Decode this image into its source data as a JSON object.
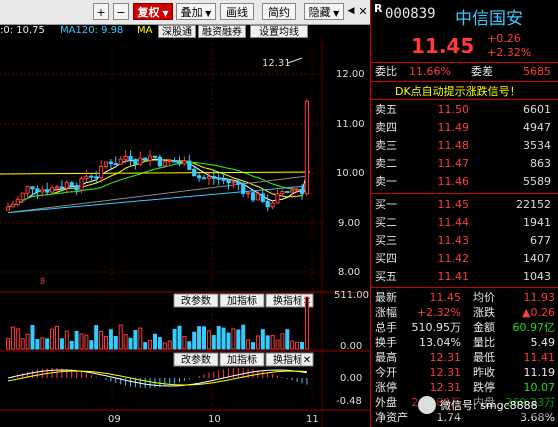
{
  "toolbar": {
    "plus": "+",
    "minus": "−",
    "fuquan": "复权",
    "diejia": "叠加",
    "huaxian": "画线",
    "jianyue": "简约",
    "yincang": "隐藏",
    "prev": "◀",
    "next": "▶",
    "close": "✕"
  },
  "ma": {
    "first": ":0: 10.75",
    "ma120": "MA120: 9.98",
    "ma_cut": "MA",
    "sgt": "深股通",
    "rzrq": "融资融券",
    "sxjx": "设置均线"
  },
  "chart": {
    "yticks": [
      "12.00",
      "11.00",
      "10.00",
      "9.00",
      "8.00"
    ],
    "high_label": "12.31",
    "low_marker": "8",
    "vol_buttons": [
      "改参数",
      "加指标",
      "换指标"
    ],
    "vol_ticks": [
      "511.00",
      "0.00"
    ],
    "macd_buttons": [
      "改参数",
      "加指标",
      "换指标"
    ],
    "macd_ticks": [
      "0.00",
      "-0.48"
    ],
    "months": [
      "09",
      "10",
      "11"
    ]
  },
  "quote": {
    "r_mark": "R",
    "code": "000839",
    "name": "中信国安",
    "price": "11.45",
    "change": "+0.26",
    "pct": "+2.32%",
    "weibi_lbl": "委比",
    "weibi": "11.66%",
    "weicha_lbl": "委差",
    "weicha": "5685",
    "signal": "DK点自动提示涨跌信号！",
    "sells": [
      {
        "label": "卖五",
        "price": "11.50",
        "vol": "6601"
      },
      {
        "label": "卖四",
        "price": "11.49",
        "vol": "4947"
      },
      {
        "label": "卖三",
        "price": "11.48",
        "vol": "3534"
      },
      {
        "label": "卖二",
        "price": "11.47",
        "vol": "863"
      },
      {
        "label": "卖一",
        "price": "11.46",
        "vol": "5589"
      }
    ],
    "buys": [
      {
        "label": "买一",
        "price": "11.45",
        "vol": "22152"
      },
      {
        "label": "买二",
        "price": "11.44",
        "vol": "1941"
      },
      {
        "label": "买三",
        "price": "11.43",
        "vol": "677"
      },
      {
        "label": "买四",
        "price": "11.42",
        "vol": "1407"
      },
      {
        "label": "买五",
        "price": "11.41",
        "vol": "1043"
      }
    ],
    "stats": [
      {
        "l1": "最新",
        "v1": "11.45",
        "c1": "red",
        "l2": "均价",
        "v2": "11.93",
        "c2": "red"
      },
      {
        "l1": "涨幅",
        "v1": "+2.32%",
        "c1": "red",
        "l2": "涨跌",
        "v2": "▲0.26",
        "c2": "red"
      },
      {
        "l1": "总手",
        "v1": "510.95万",
        "c1": "wht",
        "l2": "金额",
        "v2": "60.97亿",
        "c2": "grn"
      },
      {
        "l1": "换手",
        "v1": "13.04%",
        "c1": "wht",
        "l2": "量比",
        "v2": "5.49",
        "c2": "wht"
      },
      {
        "l1": "最高",
        "v1": "12.31",
        "c1": "red",
        "l2": "最低",
        "v2": "11.41",
        "c2": "red"
      },
      {
        "l1": "今开",
        "v1": "12.31",
        "c1": "red",
        "l2": "昨收",
        "v2": "11.19",
        "c2": "wht"
      },
      {
        "l1": "涨停",
        "v1": "12.31",
        "c1": "red",
        "l2": "跌停",
        "v2": "10.07",
        "c2": "grn"
      },
      {
        "l1": "外盘",
        "v1": "241.89万",
        "c1": "red",
        "l2": "内盘",
        "v2": "269.23万",
        "c2": "grn"
      },
      {
        "l1": "净资产",
        "v1": "1.74",
        "c1": "wht",
        "l2": "",
        "v2": "3.68%",
        "c2": "wht"
      }
    ]
  },
  "watermark": "微信号: smgc8888"
}
